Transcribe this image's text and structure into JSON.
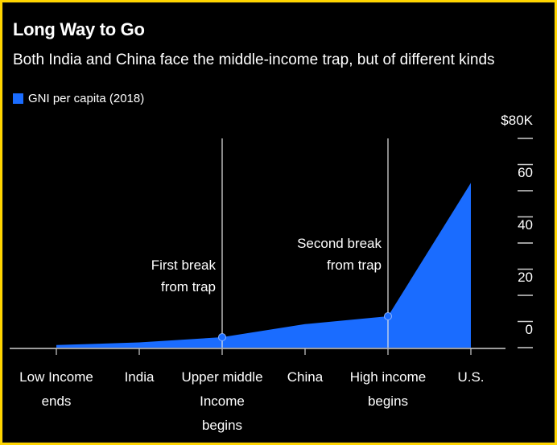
{
  "chart_data": {
    "type": "area",
    "title": "Long Way to Go",
    "subtitle": "Both India and China face the middle-income trap, but of different kinds",
    "xlabel": "",
    "ylabel": "",
    "categories": [
      "Low Income ends",
      "India",
      "Upper middle Income begins",
      "China",
      "High income begins",
      "U.S."
    ],
    "category_lines": [
      [
        "Low Income",
        "ends"
      ],
      [
        "India"
      ],
      [
        "Upper middle",
        "Income",
        "begins"
      ],
      [
        "China"
      ],
      [
        "High income",
        "begins"
      ],
      [
        "U.S."
      ]
    ],
    "series": [
      {
        "name": "GNI per capita (2018)",
        "values": [
          1,
          2,
          4,
          9,
          12,
          63
        ]
      }
    ],
    "ylim": [
      0,
      80
    ],
    "yticks": [
      0,
      20,
      40,
      60,
      80
    ],
    "ytick_labels": [
      "0",
      "20",
      "40",
      "60",
      "$80K"
    ],
    "annotations": [
      {
        "category_index": 2,
        "lines": [
          "First break",
          "from trap"
        ]
      },
      {
        "category_index": 4,
        "lines": [
          "Second break",
          "from trap"
        ]
      }
    ],
    "legend_position": "top-left",
    "grid": false,
    "colors": {
      "series": "#1a6cff",
      "background": "#000000",
      "text": "#ffffff",
      "border": "#ffd500"
    }
  }
}
